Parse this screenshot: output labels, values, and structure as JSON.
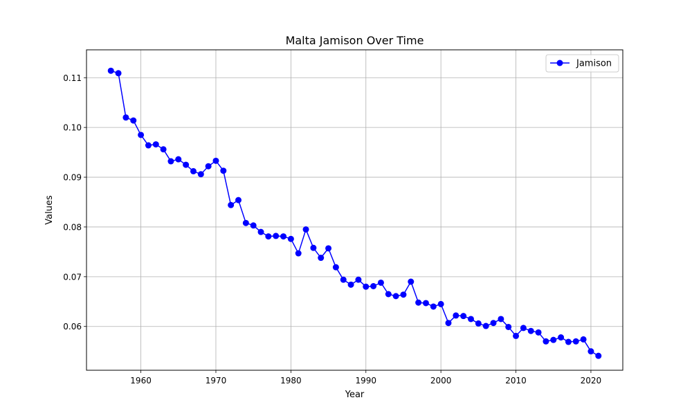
{
  "chart_data": {
    "type": "line",
    "title": "Malta Jamison Over Time",
    "xlabel": "Year",
    "ylabel": "Values",
    "xlim": [
      1952.75,
      2024.25
    ],
    "ylim": [
      0.0512,
      0.1156
    ],
    "x_ticks": [
      1960,
      1970,
      1980,
      1990,
      2000,
      2010,
      2020
    ],
    "y_ticks": [
      0.06,
      0.07,
      0.08,
      0.09,
      0.1,
      0.11
    ],
    "y_tick_labels": [
      "0.06",
      "0.07",
      "0.08",
      "0.09",
      "0.10",
      "0.11"
    ],
    "grid": true,
    "legend_position": "top-right",
    "series": [
      {
        "name": "Jamison",
        "color": "#0000ff",
        "marker": "circle",
        "x": [
          1956,
          1957,
          1958,
          1959,
          1960,
          1961,
          1962,
          1963,
          1964,
          1965,
          1966,
          1967,
          1968,
          1969,
          1970,
          1971,
          1972,
          1973,
          1974,
          1975,
          1976,
          1977,
          1978,
          1979,
          1980,
          1981,
          1982,
          1983,
          1984,
          1985,
          1986,
          1987,
          1988,
          1989,
          1990,
          1991,
          1992,
          1993,
          1994,
          1995,
          1996,
          1997,
          1998,
          1999,
          2000,
          2001,
          2002,
          2003,
          2004,
          2005,
          2006,
          2007,
          2008,
          2009,
          2010,
          2011,
          2012,
          2013,
          2014,
          2015,
          2016,
          2017,
          2018,
          2019,
          2020,
          2021
        ],
        "y": [
          0.1114,
          0.1109,
          0.102,
          0.1014,
          0.0985,
          0.0964,
          0.0966,
          0.0956,
          0.0932,
          0.0936,
          0.0925,
          0.0912,
          0.0906,
          0.0922,
          0.0933,
          0.0913,
          0.0844,
          0.0854,
          0.0808,
          0.0803,
          0.079,
          0.0781,
          0.0782,
          0.0781,
          0.0776,
          0.0747,
          0.0795,
          0.0758,
          0.0738,
          0.0757,
          0.0719,
          0.0694,
          0.0684,
          0.0694,
          0.068,
          0.0681,
          0.0688,
          0.0665,
          0.0661,
          0.0664,
          0.069,
          0.0648,
          0.0647,
          0.064,
          0.0645,
          0.0607,
          0.0622,
          0.0621,
          0.0615,
          0.0606,
          0.0601,
          0.0607,
          0.0615,
          0.0599,
          0.0581,
          0.0597,
          0.0591,
          0.0588,
          0.057,
          0.0573,
          0.0578,
          0.0569,
          0.057,
          0.0574,
          0.055,
          0.0541
        ]
      }
    ]
  }
}
